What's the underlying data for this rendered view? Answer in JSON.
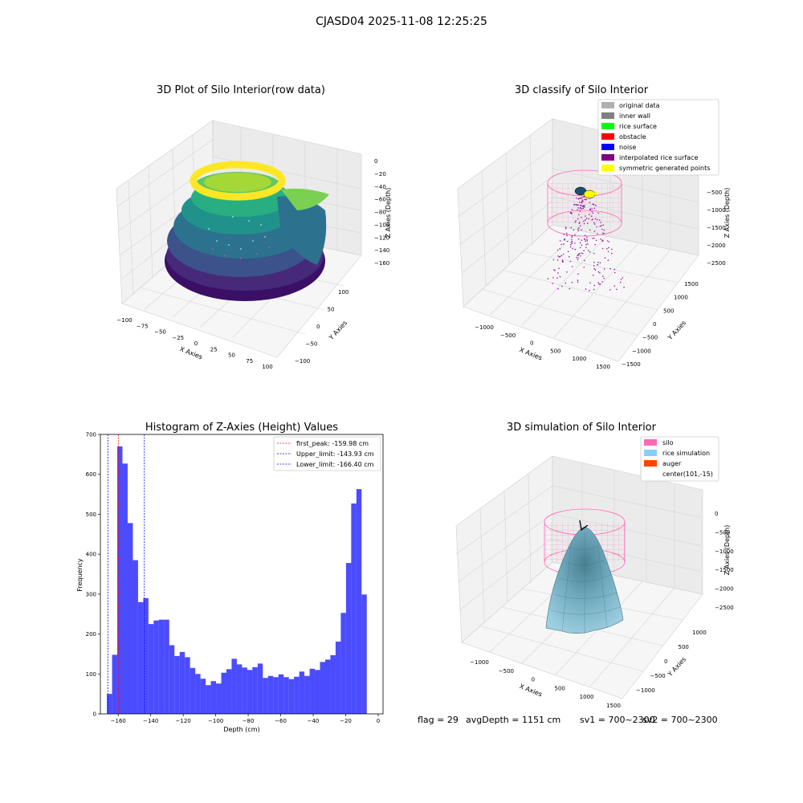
{
  "suptitle": "CJASD04 2025-11-08 12:25:25",
  "chart_data": [
    {
      "type": "scatter",
      "title": "3D Plot of Silo Interior(row data)",
      "xlabel": "X Axies",
      "ylabel": "Y Axies",
      "zlabel": "Z Axies (Depth)",
      "x_ticks": [
        "−100",
        "−75",
        "−50",
        "−25",
        "0",
        "25",
        "50",
        "75",
        "100"
      ],
      "y_ticks": [
        "−100",
        "−50",
        "0",
        "50",
        "100"
      ],
      "z_ticks": [
        "0",
        "−20",
        "−40",
        "−60",
        "−80",
        "−100",
        "−120",
        "−140",
        "−160"
      ],
      "xlim": [
        -100,
        100
      ],
      "ylim": [
        -100,
        100
      ],
      "zlim": [
        -170,
        0
      ],
      "colormap": "viridis"
    },
    {
      "type": "scatter",
      "title": "3D classify of Silo Interior",
      "xlabel": "X Axies",
      "ylabel": "Y Axies",
      "zlabel": "Z Axies (Depth)",
      "x_ticks": [
        "−1000",
        "−500",
        "0",
        "500",
        "1000",
        "1500"
      ],
      "y_ticks": [
        "−1500",
        "−1000",
        "−500",
        "0",
        "500",
        "1000",
        "1500"
      ],
      "z_ticks": [
        "−500",
        "−1000",
        "−1500",
        "−2000",
        "−2500"
      ],
      "legend": [
        {
          "label": "original data",
          "color": "#b0b0b0"
        },
        {
          "label": "inner wall",
          "color": "#808080"
        },
        {
          "label": "rice surface",
          "color": "#00ff00"
        },
        {
          "label": "obstacle",
          "color": "#ff0000"
        },
        {
          "label": "noise",
          "color": "#0000ff"
        },
        {
          "label": "interpolated rice surface",
          "color": "#800080"
        },
        {
          "label": "symmetric generated points",
          "color": "#ffff00"
        }
      ]
    },
    {
      "type": "bar",
      "title": "Histogram of Z-Axies (Height) Values",
      "xlabel": "Depth (cm)",
      "ylabel": "Frequency",
      "xlim": [
        -171,
        3
      ],
      "ylim": [
        0,
        700
      ],
      "x_ticks": [
        -160,
        -140,
        -120,
        -100,
        -80,
        -60,
        -40,
        -20,
        0
      ],
      "y_ticks": [
        0,
        100,
        200,
        300,
        400,
        500,
        600,
        700
      ],
      "bin_start": -167,
      "bin_width": 3.2,
      "values": [
        50,
        148,
        670,
        627,
        478,
        385,
        280,
        290,
        225,
        234,
        236,
        236,
        172,
        145,
        155,
        142,
        115,
        100,
        88,
        72,
        82,
        76,
        103,
        112,
        138,
        124,
        116,
        110,
        117,
        126,
        90,
        95,
        92,
        99,
        92,
        87,
        93,
        106,
        95,
        113,
        110,
        130,
        136,
        147,
        181,
        253,
        378,
        527,
        563,
        299
      ],
      "color": "#0000ff",
      "vlines": [
        {
          "x": -159.98,
          "color": "#ff0000",
          "label": "first_peak: -159.98 cm"
        },
        {
          "x": -143.93,
          "color": "#0000ff",
          "label": "Upper_limit: -143.93 cm"
        },
        {
          "x": -166.4,
          "color": "#0000ff",
          "label": "Lower_limit: -166.40 cm"
        }
      ]
    },
    {
      "type": "area",
      "title": "3D simulation of Silo Interior",
      "xlabel": "X Axies",
      "ylabel": "Y Axies",
      "zlabel": "Z Axies (Depth)",
      "x_ticks": [
        "−1000",
        "−500",
        "0",
        "500",
        "1000",
        "1500"
      ],
      "y_ticks": [
        "−1000",
        "−500",
        "0",
        "500",
        "1000"
      ],
      "z_ticks": [
        "0",
        "−500",
        "−1000",
        "−1500",
        "−2000",
        "−2500"
      ],
      "legend": [
        {
          "label": "silo",
          "color": "#ff69b4"
        },
        {
          "label": "rice simulation",
          "color": "#87cefa"
        },
        {
          "label": "auger",
          "color": "#ff4500"
        },
        {
          "label": "center(101,-15)",
          "color": ""
        }
      ]
    }
  ],
  "footer": {
    "flag": "flag = 29",
    "avg": "avgDepth = 1151 cm",
    "sv1": "sv1 = 700~2300",
    "sv2": "sv2 = 700~2300"
  }
}
